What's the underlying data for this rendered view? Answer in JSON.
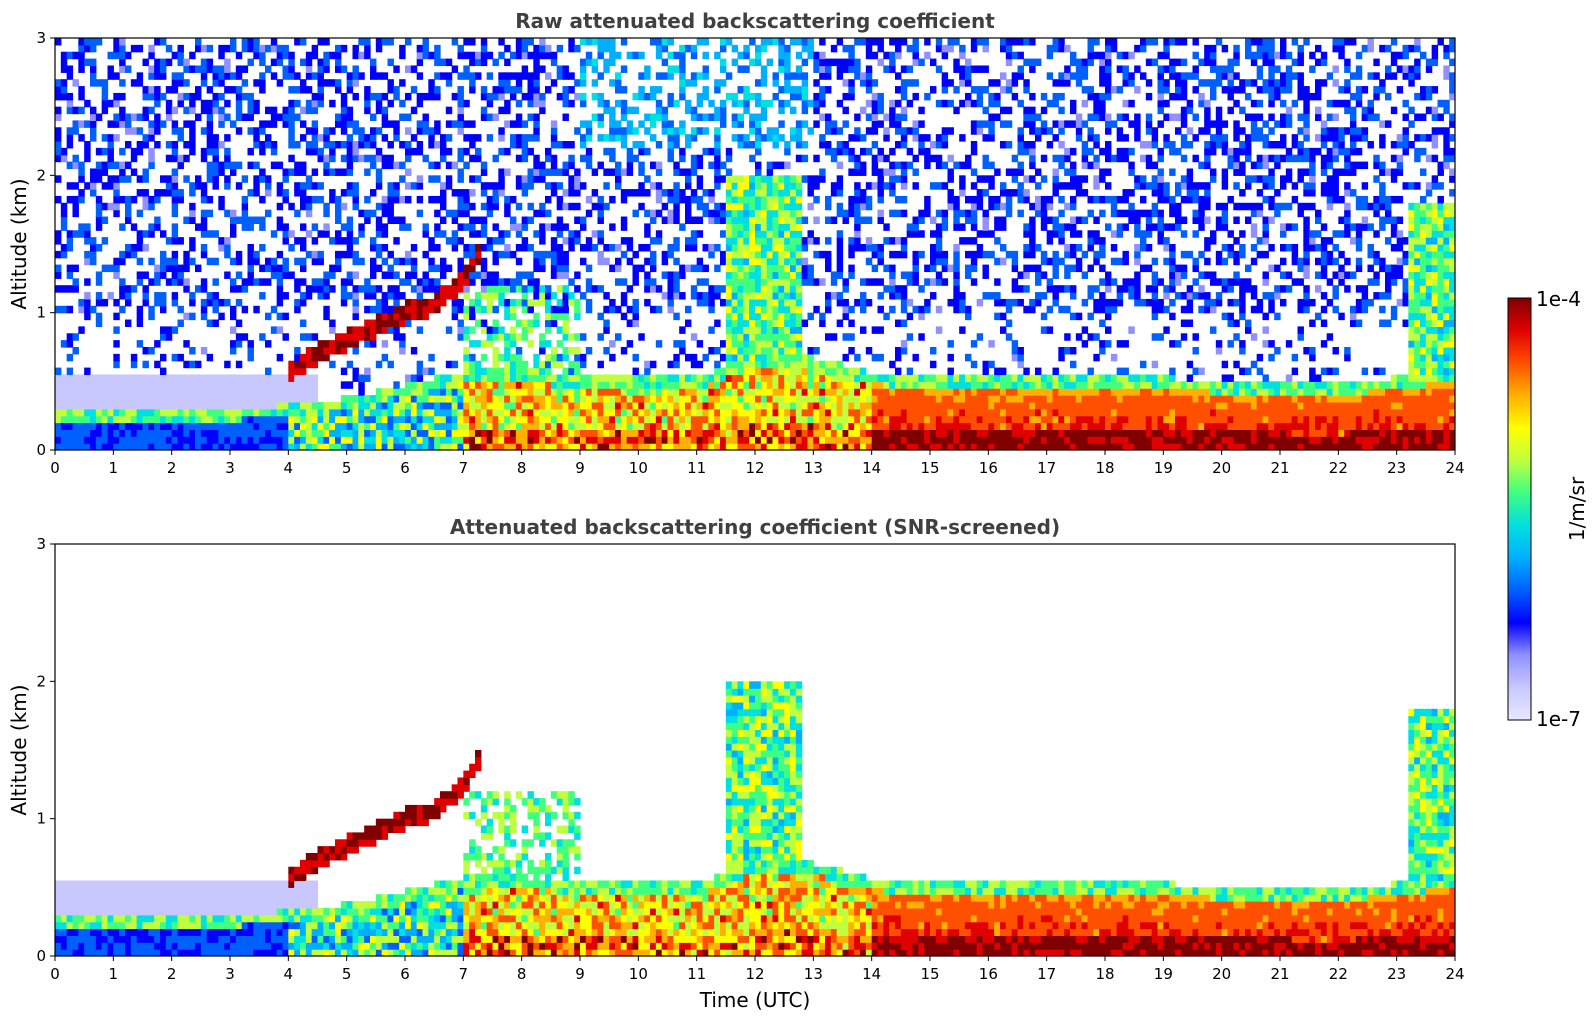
{
  "chart_data": [
    {
      "type": "heatmap",
      "title": "Raw attenuated backscattering coefficient",
      "xlabel": "",
      "ylabel": "Altitude (km)",
      "xlim": [
        0,
        24
      ],
      "ylim": [
        0,
        3
      ],
      "xticks": [
        "0",
        "1",
        "2",
        "3",
        "4",
        "5",
        "6",
        "7",
        "8",
        "9",
        "10",
        "11",
        "12",
        "13",
        "14",
        "15",
        "16",
        "17",
        "18",
        "19",
        "20",
        "21",
        "22",
        "23",
        "24"
      ],
      "yticks": [
        "0",
        "1",
        "2",
        "3"
      ],
      "screened": false,
      "features": {
        "boundary_layer_top_km": [
          [
            0,
            0.22
          ],
          [
            3,
            0.22
          ],
          [
            4,
            0.25
          ],
          [
            5,
            0.3
          ],
          [
            6,
            0.4
          ],
          [
            7,
            0.5
          ],
          [
            8,
            0.5
          ],
          [
            9,
            0.45
          ],
          [
            10,
            0.45
          ],
          [
            11,
            0.45
          ],
          [
            12,
            0.6
          ],
          [
            13,
            0.6
          ],
          [
            14,
            0.48
          ],
          [
            15,
            0.45
          ],
          [
            16,
            0.45
          ],
          [
            17,
            0.45
          ],
          [
            18,
            0.45
          ],
          [
            19,
            0.45
          ],
          [
            20,
            0.42
          ],
          [
            21,
            0.42
          ],
          [
            22,
            0.4
          ],
          [
            23,
            0.45
          ],
          [
            24,
            0.5
          ]
        ],
        "elevated_layer": [
          [
            4.0,
            0.55
          ],
          [
            4.5,
            0.7
          ],
          [
            5.0,
            0.8
          ],
          [
            5.5,
            0.9
          ],
          [
            6.0,
            1.0
          ],
          [
            6.5,
            1.05
          ],
          [
            7.0,
            1.25
          ],
          [
            7.3,
            1.45
          ]
        ],
        "clouds": [
          {
            "x": 10.5,
            "y": 1.3
          },
          {
            "x": 11.8,
            "y": 1.9
          },
          {
            "x": 12.3,
            "y": 1.95
          },
          {
            "x": 23.4,
            "y": 1.6
          }
        ]
      }
    },
    {
      "type": "heatmap",
      "title": "Attenuated backscattering coefficient (SNR-screened)",
      "xlabel": "Time (UTC)",
      "ylabel": "Altitude (km)",
      "xlim": [
        0,
        24
      ],
      "ylim": [
        0,
        3
      ],
      "xticks": [
        "0",
        "1",
        "2",
        "3",
        "4",
        "5",
        "6",
        "7",
        "8",
        "9",
        "10",
        "11",
        "12",
        "13",
        "14",
        "15",
        "16",
        "17",
        "18",
        "19",
        "20",
        "21",
        "22",
        "23",
        "24"
      ],
      "yticks": [
        "0",
        "1",
        "2",
        "3"
      ],
      "screened": true
    }
  ],
  "colorbar": {
    "label": "1/m/sr",
    "min_label": "1e-7",
    "max_label": "1e-4",
    "scale": "log",
    "colormap": "jet",
    "colors": [
      "#e8e8ff",
      "#c8c8ff",
      "#9090ff",
      "#0000ff",
      "#0060ff",
      "#00b0ff",
      "#00e0e0",
      "#40ff80",
      "#c0ff40",
      "#ffff00",
      "#ffb000",
      "#ff5000",
      "#e00000",
      "#800000"
    ]
  }
}
